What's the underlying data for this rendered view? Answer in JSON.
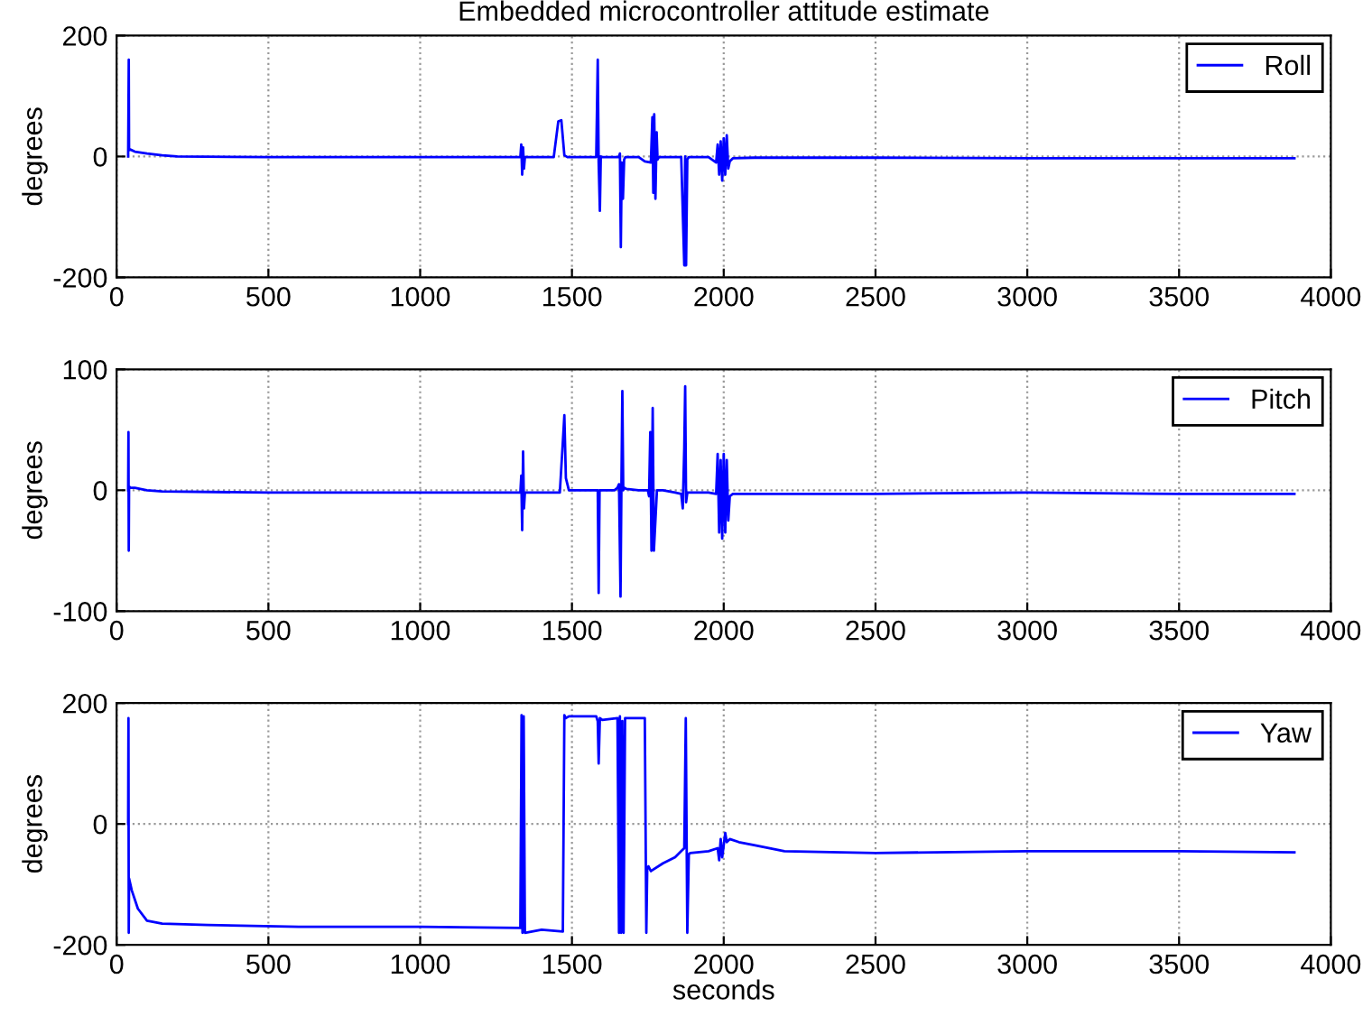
{
  "chart_data": [
    {
      "type": "line",
      "title": "Embedded microcontroller attitude estimate",
      "ylabel": "degrees",
      "xlim": [
        0,
        4000
      ],
      "xticks": [
        0,
        500,
        1000,
        1500,
        2000,
        2500,
        3000,
        3500,
        4000
      ],
      "ylim": [
        -200,
        200
      ],
      "yticks": [
        -200,
        0,
        200
      ],
      "grid": true,
      "legend": "top right",
      "series": [
        {
          "name": "Roll",
          "color": "#0000ff",
          "x": [
            38,
            40,
            41,
            43,
            60,
            100,
            150,
            200,
            500,
            1000,
            1300,
            1330,
            1333,
            1336,
            1339,
            1342,
            1345,
            1440,
            1455,
            1465,
            1475,
            1485,
            1500,
            1580,
            1585,
            1588,
            1592,
            1595,
            1600,
            1640,
            1655,
            1658,
            1661,
            1664,
            1668,
            1672,
            1676,
            1680,
            1720,
            1740,
            1760,
            1765,
            1768,
            1771,
            1775,
            1779,
            1782,
            1785,
            1790,
            1800,
            1860,
            1870,
            1873,
            1876,
            1880,
            1885,
            1890,
            1895,
            1900,
            1950,
            1975,
            1980,
            1985,
            1990,
            1995,
            2000,
            2005,
            2010,
            2015,
            2020,
            2030,
            2100,
            2500,
            3000,
            3500,
            3880
          ],
          "values": [
            0,
            160,
            10,
            12,
            8,
            5,
            2,
            0,
            -1,
            -1,
            -1,
            -1,
            20,
            -30,
            15,
            -20,
            -1,
            -1,
            58,
            60,
            2,
            -1,
            -1,
            -1,
            160,
            -10,
            -90,
            0,
            -1,
            -1,
            -1,
            5,
            -150,
            -10,
            -70,
            -5,
            -1,
            -1,
            -1,
            -8,
            -10,
            65,
            -60,
            70,
            -70,
            40,
            -5,
            -2,
            -1,
            -1,
            -1,
            -180,
            0,
            -180,
            -5,
            -1,
            -1,
            -1,
            -1,
            -1,
            -10,
            20,
            -30,
            25,
            -40,
            30,
            -30,
            35,
            -20,
            -8,
            -3,
            -2,
            -2,
            -3,
            -3,
            -3
          ]
        }
      ]
    },
    {
      "type": "line",
      "ylabel": "degrees",
      "xlim": [
        0,
        4000
      ],
      "xticks": [
        0,
        500,
        1000,
        1500,
        2000,
        2500,
        3000,
        3500,
        4000
      ],
      "ylim": [
        -100,
        100
      ],
      "yticks": [
        -100,
        0,
        100
      ],
      "grid": true,
      "legend": "top right",
      "series": [
        {
          "name": "Pitch",
          "color": "#0000ff",
          "x": [
            38,
            39,
            40,
            41,
            42,
            45,
            60,
            100,
            150,
            500,
            1000,
            1320,
            1330,
            1333,
            1336,
            1339,
            1342,
            1345,
            1460,
            1470,
            1475,
            1480,
            1490,
            1580,
            1585,
            1588,
            1591,
            1600,
            1640,
            1650,
            1655,
            1660,
            1663,
            1666,
            1669,
            1672,
            1680,
            1720,
            1750,
            1754,
            1758,
            1762,
            1766,
            1770,
            1780,
            1800,
            1840,
            1860,
            1865,
            1870,
            1873,
            1876,
            1880,
            1890,
            1950,
            1975,
            1980,
            1985,
            1990,
            1995,
            2000,
            2005,
            2010,
            2015,
            2020,
            2030,
            2100,
            2500,
            3000,
            3500,
            3880
          ],
          "values": [
            0,
            48,
            -50,
            3,
            3,
            2,
            2,
            0,
            -1,
            -2,
            -2,
            -2,
            -2,
            12,
            -33,
            32,
            -15,
            -2,
            -2,
            40,
            62,
            10,
            0,
            0,
            0,
            -85,
            0,
            0,
            0,
            2,
            5,
            -88,
            5,
            82,
            0,
            2,
            1,
            0,
            0,
            -5,
            48,
            -50,
            68,
            -50,
            0,
            0,
            -2,
            -3,
            -15,
            35,
            86,
            -10,
            -2,
            -2,
            -2,
            -3,
            30,
            -35,
            25,
            -40,
            30,
            -35,
            25,
            -25,
            -5,
            -3,
            -3,
            -3,
            -2,
            -3,
            -3
          ]
        }
      ]
    },
    {
      "type": "line",
      "ylabel": "degrees",
      "xlabel": "seconds",
      "xlim": [
        0,
        4000
      ],
      "xticks": [
        0,
        500,
        1000,
        1500,
        2000,
        2500,
        3000,
        3500,
        4000
      ],
      "ylim": [
        -200,
        200
      ],
      "yticks": [
        -200,
        0,
        200
      ],
      "grid": true,
      "legend": "top right",
      "series": [
        {
          "name": "Yaw",
          "color": "#0000ff",
          "x": [
            38,
            39,
            40,
            41,
            50,
            70,
            100,
            150,
            300,
            600,
            1000,
            1330,
            1334,
            1337,
            1341,
            1345,
            1400,
            1470,
            1475,
            1480,
            1490,
            1580,
            1585,
            1588,
            1592,
            1600,
            1650,
            1655,
            1658,
            1662,
            1666,
            1670,
            1675,
            1740,
            1745,
            1748,
            1752,
            1760,
            1800,
            1840,
            1860,
            1870,
            1875,
            1880,
            1885,
            1890,
            1950,
            1980,
            1985,
            1990,
            1995,
            2000,
            2005,
            2010,
            2020,
            2050,
            2100,
            2200,
            2500,
            3000,
            3500,
            3880
          ],
          "values": [
            0,
            175,
            -180,
            -90,
            -110,
            -140,
            -160,
            -165,
            -167,
            -170,
            -170,
            -172,
            180,
            -180,
            178,
            -180,
            -175,
            -178,
            180,
            175,
            178,
            178,
            170,
            100,
            175,
            172,
            175,
            -180,
            178,
            -180,
            170,
            -180,
            175,
            175,
            -180,
            -75,
            -70,
            -78,
            -65,
            -55,
            -45,
            -40,
            175,
            -180,
            -50,
            -48,
            -45,
            -40,
            -60,
            -25,
            -55,
            -35,
            -15,
            -30,
            -25,
            -30,
            -35,
            -45,
            -48,
            -45,
            -45,
            -47
          ]
        }
      ]
    }
  ]
}
